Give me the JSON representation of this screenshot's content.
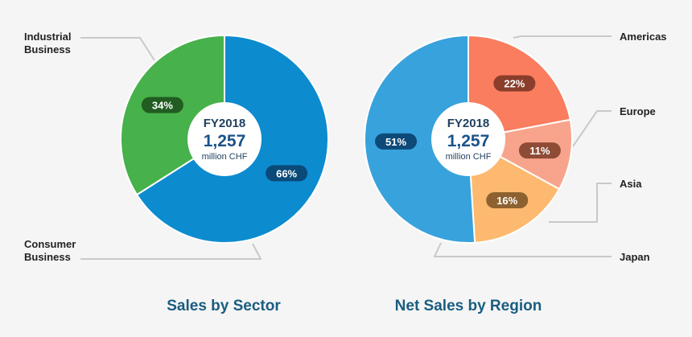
{
  "chart_data": [
    {
      "type": "pie",
      "title": "Sales by Sector",
      "center": {
        "label": "FY2018",
        "total": "1,257",
        "unit": "million CHF"
      },
      "slices": [
        {
          "name": "Consumer Business",
          "label_lines": [
            "Consumer",
            "Business"
          ],
          "value": 66,
          "pct_label": "66%",
          "color": "#0d8bcf",
          "badge_color": "#0a4a78"
        },
        {
          "name": "Industrial Business",
          "label_lines": [
            "Industrial",
            "Business"
          ],
          "value": 34,
          "pct_label": "34%",
          "color": "#47b14b",
          "badge_color": "#215c21"
        }
      ]
    },
    {
      "type": "pie",
      "title": "Net Sales by Region",
      "center": {
        "label": "FY2018",
        "total": "1,257",
        "unit": "million CHF"
      },
      "slices": [
        {
          "name": "Americas",
          "label_lines": [
            "Americas"
          ],
          "value": 22,
          "pct_label": "22%",
          "color": "#f97d5e",
          "badge_color": "#8a3d2b"
        },
        {
          "name": "Europe",
          "label_lines": [
            "Europe"
          ],
          "value": 11,
          "pct_label": "11%",
          "color": "#f8a48c",
          "badge_color": "#8e4b36"
        },
        {
          "name": "Asia",
          "label_lines": [
            "Asia"
          ],
          "value": 16,
          "pct_label": "16%",
          "color": "#fdb96f",
          "badge_color": "#8d6230"
        },
        {
          "name": "Japan",
          "label_lines": [
            "Japan"
          ],
          "value": 51,
          "pct_label": "51%",
          "color": "#38a2dc",
          "badge_color": "#0d4a78"
        }
      ]
    }
  ]
}
